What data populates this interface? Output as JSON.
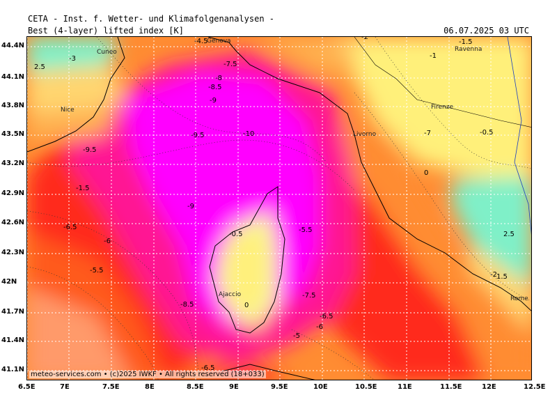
{
  "header": {
    "institute": "CETA - Inst. f. Wetter- und Klimafolgenanalysen -",
    "parameter": "Best (4-layer) lifted index [K]",
    "valid_time": "06.07.2025 03 UTC"
  },
  "map": {
    "region": "Ligurian Sea, Corsica and central Italy",
    "lat_labels": [
      "44.4N",
      "44.1N",
      "43.8N",
      "43.5N",
      "43.2N",
      "42.9N",
      "42.6N",
      "42.3N",
      "42N",
      "41.7N",
      "41.4N",
      "41.1N"
    ],
    "lon_labels": [
      "6.5E",
      "7E",
      "7.5E",
      "8E",
      "8.5E",
      "9E",
      "9.5E",
      "10E",
      "10.5E",
      "11E",
      "11.5E",
      "12E",
      "12.5E"
    ],
    "cities": [
      "Genova",
      "Cuneo",
      "Ravenna",
      "Nice",
      "Firenze",
      "Livorno",
      "Ajaccio",
      "Rome"
    ],
    "contour_labels": [
      "-4.5",
      "2.5",
      "-3",
      "-2",
      "-1.5",
      "-1",
      "-7.5",
      "-8",
      "-8.5",
      "-9",
      "-10",
      "-9.5",
      "-6.5",
      "-5.5",
      "-6",
      "-0.5",
      "0",
      "-7",
      "-1.5",
      "2.5",
      "0",
      "-5",
      "-6.5",
      "-7.5",
      "-2",
      "-6",
      "-0.5",
      "1.5",
      "-9.5",
      "-9",
      "-8.5",
      "-5.5",
      "-6.5"
    ],
    "palette": {
      "very_unstable": "#ff00ff",
      "unstable_magenta": "#ff1493",
      "red": "#ff2a1a",
      "orange_red": "#ff5a1e",
      "orange": "#ff8c32",
      "light_orange": "#ffb050",
      "yellow_orange": "#ffd570",
      "yellow": "#fff07a",
      "pale_yellow": "#f7f79a",
      "aquamarine": "#7ff0c8",
      "salmon": "#ff9a6a"
    }
  },
  "footer": {
    "credit": "meteo-services.com • (c)2025 IWKF • All rights reserved (18+033)"
  }
}
